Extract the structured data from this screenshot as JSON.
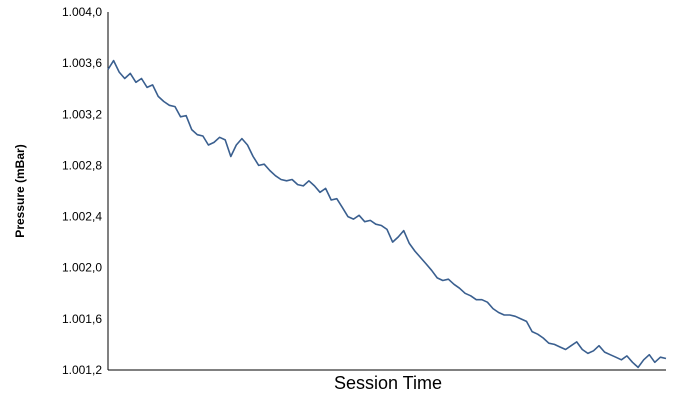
{
  "chart_data": {
    "type": "line",
    "title": "",
    "xlabel": "Session Time",
    "ylabel": "Pressure (mBar)",
    "ylim": [
      1.0012,
      1.004
    ],
    "yticks": [
      1.0012,
      1.0016,
      1.002,
      1.0024,
      1.0028,
      1.0032,
      1.0036,
      1.004
    ],
    "ytick_labels": [
      "1.001,2",
      "1.001,6",
      "1.002,0",
      "1.002,4",
      "1.002,8",
      "1.003,2",
      "1.003,6",
      "1.004,0"
    ],
    "xlim": [
      0,
      100
    ],
    "grid": false,
    "legend": "none",
    "colors": {
      "series": "#3a5f8f"
    },
    "series": [
      {
        "x": [
          0,
          1,
          2,
          3,
          4,
          5,
          6,
          7,
          8,
          9,
          10,
          11,
          12,
          13,
          14,
          15,
          16,
          17,
          18,
          19,
          20,
          21,
          22,
          23,
          24,
          25,
          26,
          27,
          28,
          29,
          30,
          31,
          32,
          33,
          34,
          35,
          36,
          37,
          38,
          39,
          40,
          41,
          42,
          43,
          44,
          45,
          46,
          47,
          48,
          49,
          50,
          51,
          52,
          53,
          54,
          55,
          56,
          57,
          58,
          59,
          60,
          61,
          62,
          63,
          64,
          65,
          66,
          67,
          68,
          69,
          70,
          71,
          72,
          73,
          74,
          75,
          76,
          77,
          78,
          79,
          80,
          81,
          82,
          83,
          84,
          85,
          86,
          87,
          88,
          89,
          90,
          91,
          92,
          93,
          94,
          95,
          96,
          97,
          98,
          99,
          100
        ],
        "values": [
          1.00355,
          1.00362,
          1.00353,
          1.00348,
          1.00352,
          1.00345,
          1.00348,
          1.00341,
          1.00343,
          1.00334,
          1.0033,
          1.00327,
          1.00326,
          1.00318,
          1.00319,
          1.00308,
          1.00304,
          1.00303,
          1.00296,
          1.00298,
          1.00302,
          1.003,
          1.00287,
          1.00296,
          1.00301,
          1.00296,
          1.00287,
          1.0028,
          1.00281,
          1.00276,
          1.00272,
          1.00269,
          1.00268,
          1.00269,
          1.00265,
          1.00264,
          1.00268,
          1.00264,
          1.00259,
          1.00262,
          1.00253,
          1.00254,
          1.00247,
          1.0024,
          1.00238,
          1.00241,
          1.00236,
          1.00237,
          1.00234,
          1.00233,
          1.0023,
          1.0022,
          1.00224,
          1.00229,
          1.00219,
          1.00213,
          1.00208,
          1.00203,
          1.00198,
          1.00192,
          1.0019,
          1.00191,
          1.00187,
          1.00184,
          1.0018,
          1.00178,
          1.00175,
          1.00175,
          1.00173,
          1.00168,
          1.00165,
          1.00163,
          1.00163,
          1.00162,
          1.0016,
          1.00158,
          1.0015,
          1.00148,
          1.00145,
          1.00141,
          1.0014,
          1.00138,
          1.00136,
          1.00139,
          1.00142,
          1.00136,
          1.00133,
          1.00135,
          1.00139,
          1.00134,
          1.00132,
          1.0013,
          1.00128,
          1.00131,
          1.00126,
          1.00122,
          1.00128,
          1.00132,
          1.00126,
          1.0013,
          1.00129
        ]
      }
    ]
  }
}
